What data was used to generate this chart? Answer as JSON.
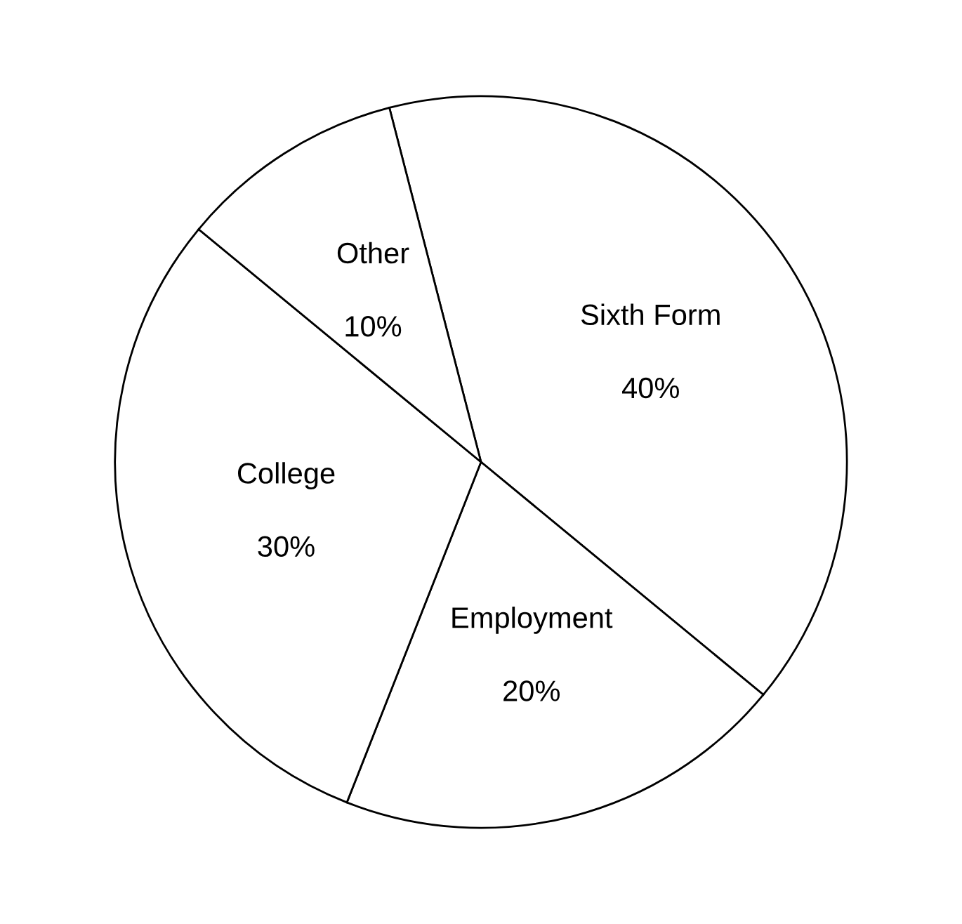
{
  "chart_data": {
    "type": "pie",
    "categories": [
      "Sixth Form",
      "Employment",
      "College",
      "Other"
    ],
    "values": [
      40,
      20,
      30,
      10
    ],
    "colors": [
      "#ffffff",
      "#ffffff",
      "#ffffff",
      "#ffffff"
    ],
    "value_labels": [
      "40%",
      "20%",
      "30%",
      "10%"
    ],
    "legend": false
  }
}
